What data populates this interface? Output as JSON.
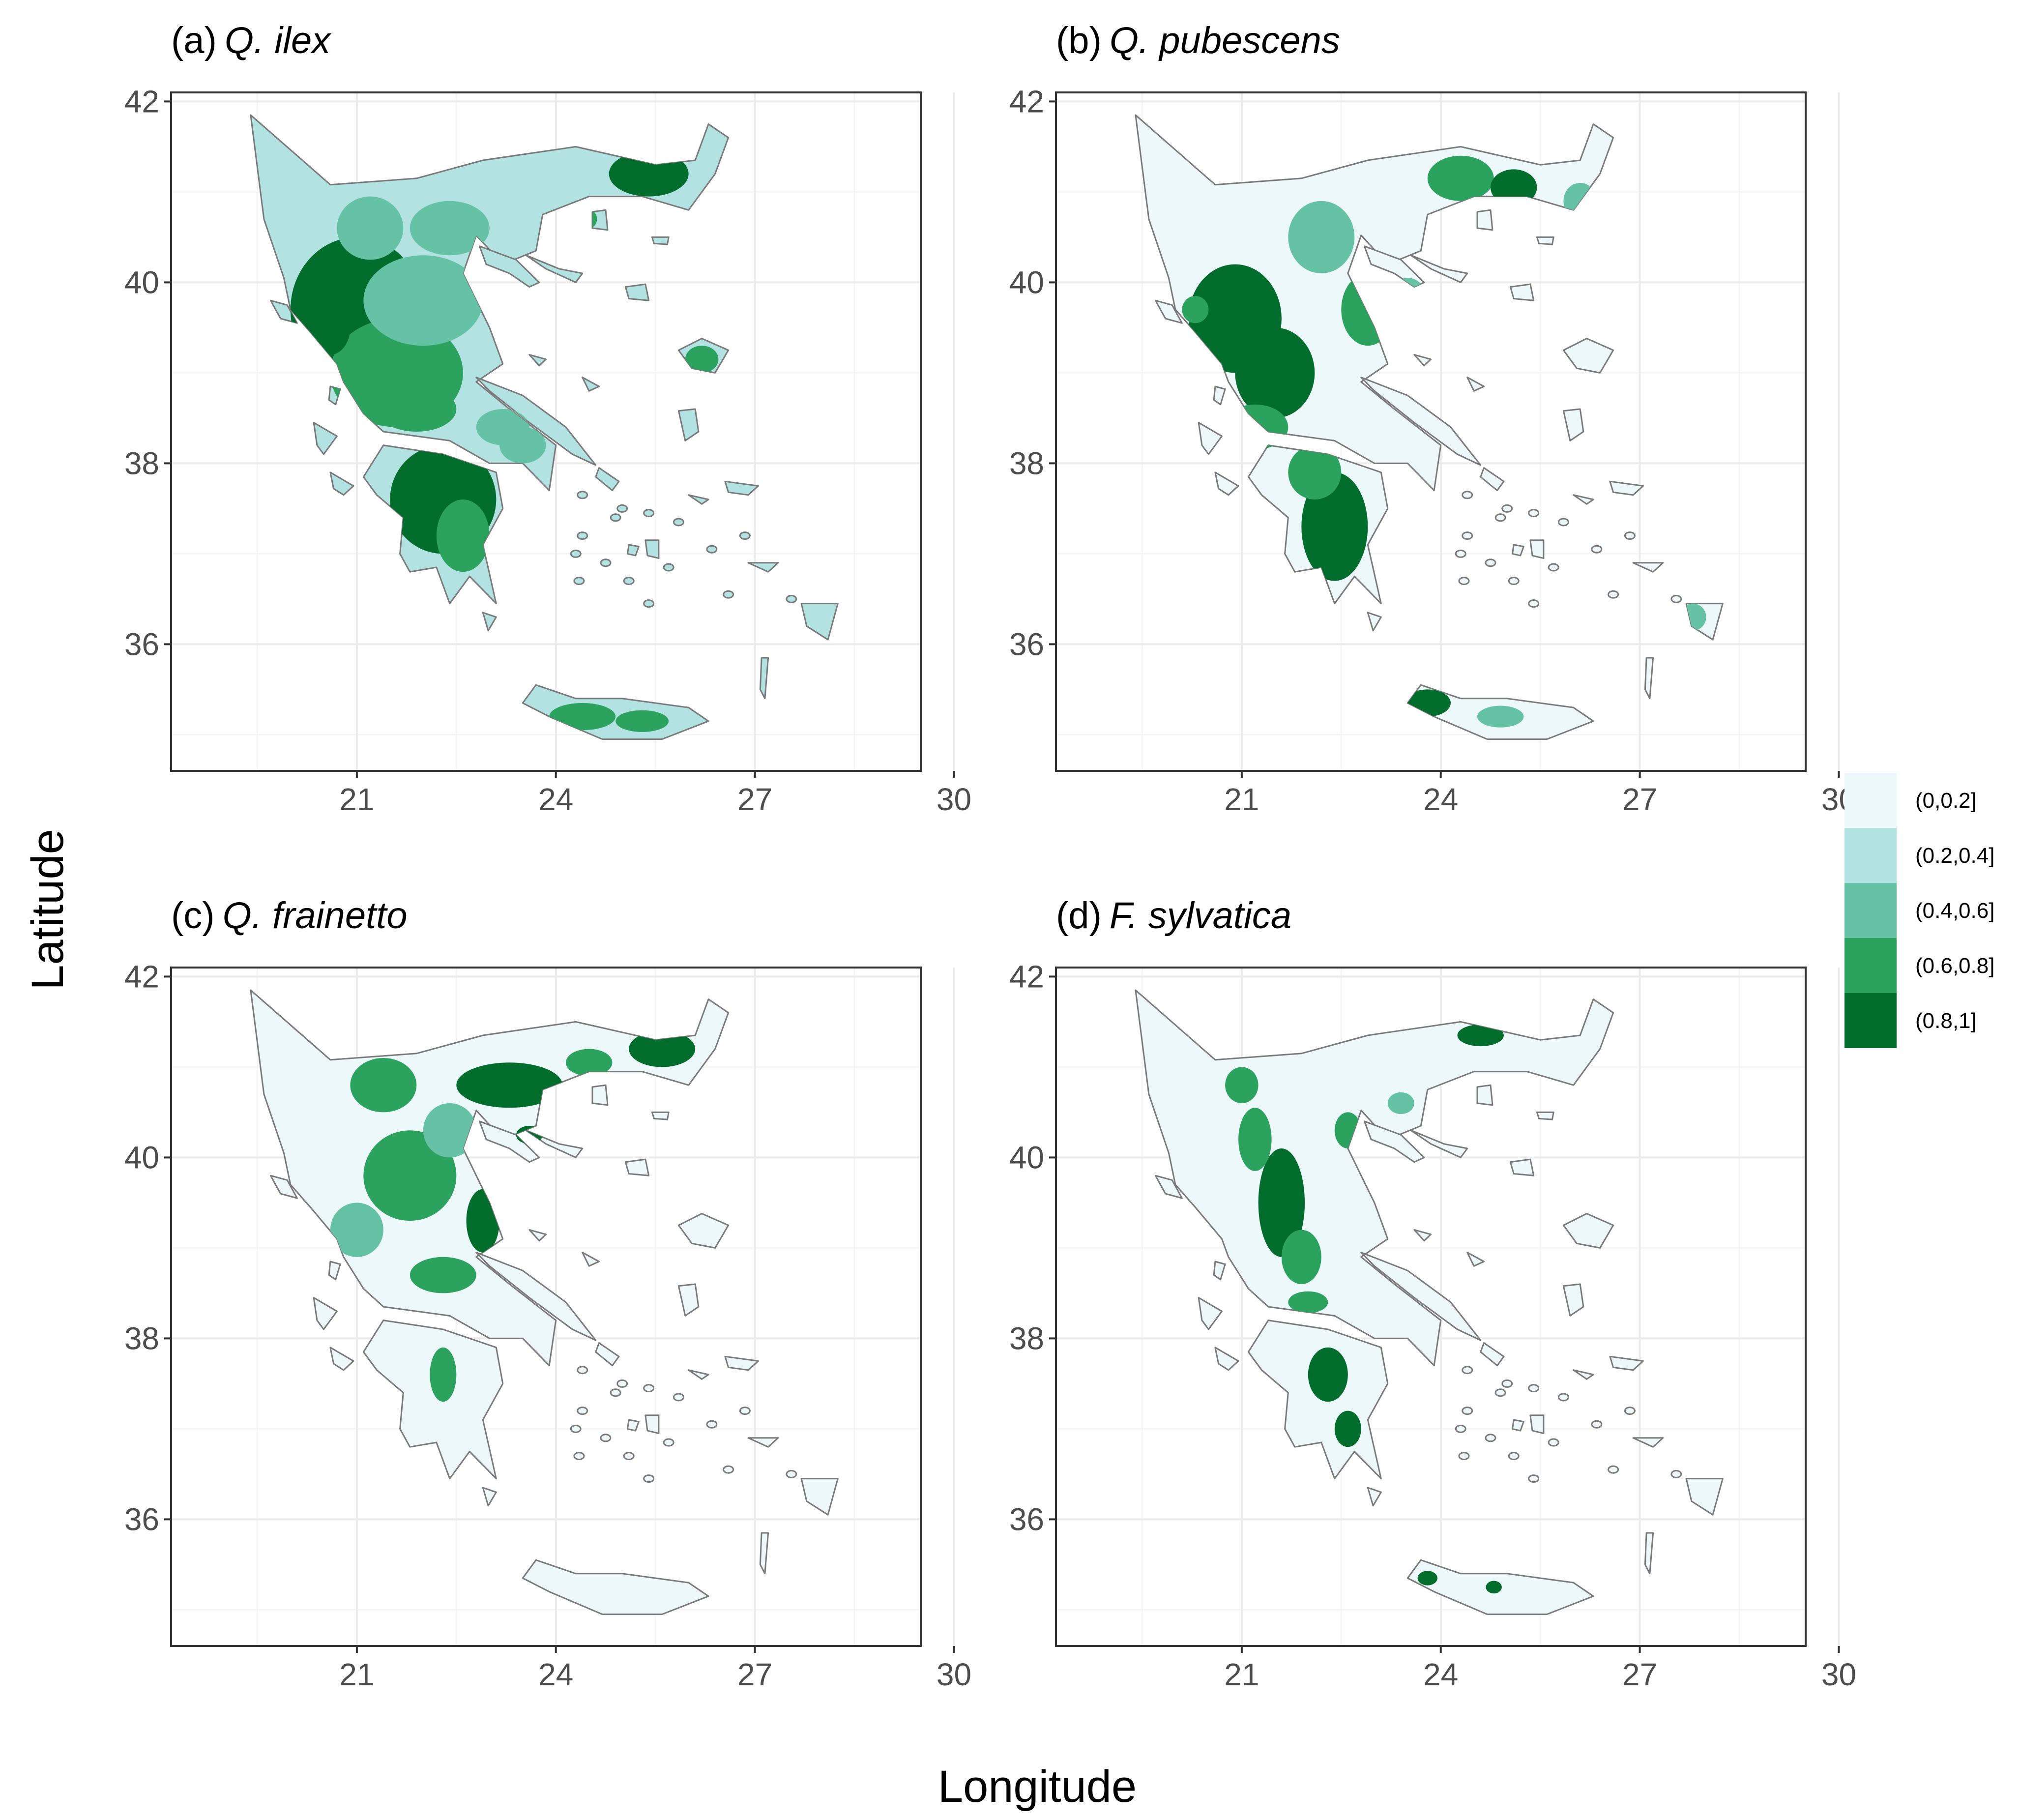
{
  "figure": {
    "x_axis_title": "Longitude",
    "y_axis_title": "Latitude"
  },
  "map_extent": {
    "lon": [
      18.2,
      29.5
    ],
    "lat": [
      34.6,
      42.1
    ]
  },
  "ticks": {
    "x": [
      21,
      24,
      27,
      30
    ],
    "y": [
      36,
      38,
      40,
      42
    ]
  },
  "legend": {
    "classes": [
      {
        "label": "(0,0.2]",
        "color": "#edf8fb"
      },
      {
        "label": "(0.2,0.4]",
        "color": "#b2e2e2"
      },
      {
        "label": "(0.4,0.6]",
        "color": "#66c2a4"
      },
      {
        "label": "(0.6,0.8]",
        "color": "#2ca25f"
      },
      {
        "label": "(0.8,1]",
        "color": "#006d2c"
      }
    ]
  },
  "panels": [
    {
      "id": "a",
      "prefix": "(a)",
      "species": "Q. ilex"
    },
    {
      "id": "b",
      "prefix": "(b)",
      "species": "Q. pubescens"
    },
    {
      "id": "c",
      "prefix": "(c)",
      "species": "Q. frainetto"
    },
    {
      "id": "d",
      "prefix": "(d)",
      "species": "F. sylvatica"
    }
  ],
  "chart_data": {
    "type": "map",
    "x_variable": "Longitude",
    "y_variable": "Latitude",
    "region_shown": "Greece",
    "color_scale": "sequential green, 5 classes",
    "grid": true
  }
}
